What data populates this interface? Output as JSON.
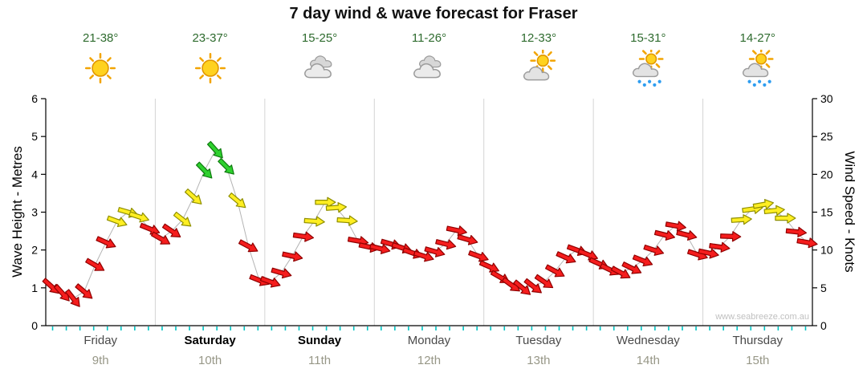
{
  "title": "7 day wind & wave forecast for Fraser",
  "watermark": "www.seabreeze.com.au",
  "header": {
    "days": [
      {
        "temp": "21-38°",
        "icon": "sunny"
      },
      {
        "temp": "23-37°",
        "icon": "sunny"
      },
      {
        "temp": "15-25°",
        "icon": "cloudy"
      },
      {
        "temp": "11-26°",
        "icon": "cloudy"
      },
      {
        "temp": "12-33°",
        "icon": "partly-cloudy"
      },
      {
        "temp": "15-31°",
        "icon": "sun-showers"
      },
      {
        "temp": "14-27°",
        "icon": "sun-showers"
      }
    ]
  },
  "chart_data": {
    "type": "line",
    "marker": "wind-arrow",
    "title": "7 day wind & wave forecast for Fraser",
    "left_axis": {
      "label": "Wave Height - Metres",
      "min": 0,
      "max": 6,
      "ticks": [
        0,
        1,
        2,
        3,
        4,
        5,
        6
      ]
    },
    "right_axis": {
      "label": "Wind Speed - Knots",
      "min": 0,
      "max": 30,
      "ticks": [
        0,
        5,
        10,
        15,
        20,
        25,
        30
      ]
    },
    "days": [
      {
        "name": "Friday",
        "date": "9th",
        "bold": false
      },
      {
        "name": "Saturday",
        "date": "10th",
        "bold": true
      },
      {
        "name": "Sunday",
        "date": "11th",
        "bold": true
      },
      {
        "name": "Monday",
        "date": "12th",
        "bold": false
      },
      {
        "name": "Tuesday",
        "date": "13th",
        "bold": false
      },
      {
        "name": "Wednesday",
        "date": "14th",
        "bold": false
      },
      {
        "name": "Thursday",
        "date": "15th",
        "bold": false
      }
    ],
    "points_per_day": 10,
    "series": [
      {
        "name": "Wind speed (knots) with arrow direction (deg, 0 = east, +cw)",
        "points": [
          [
            5.2,
            42
          ],
          [
            4.3,
            48
          ],
          [
            3.6,
            52
          ],
          [
            4.5,
            40
          ],
          [
            8,
            30
          ],
          [
            11,
            24
          ],
          [
            13.8,
            20
          ],
          [
            15,
            16
          ],
          [
            14.4,
            18
          ],
          [
            12.8,
            22
          ],
          [
            11.5,
            30
          ],
          [
            12.5,
            34
          ],
          [
            14,
            38
          ],
          [
            17,
            42
          ],
          [
            20.5,
            46
          ],
          [
            23.2,
            48
          ],
          [
            21,
            45
          ],
          [
            16.5,
            40
          ],
          [
            10.5,
            28
          ],
          [
            6,
            22
          ],
          [
            5.8,
            20
          ],
          [
            7,
            16
          ],
          [
            9.2,
            12
          ],
          [
            11.8,
            8
          ],
          [
            13.8,
            4
          ],
          [
            16.3,
            0
          ],
          [
            15.6,
            -4
          ],
          [
            13.9,
            4
          ],
          [
            11.2,
            10
          ],
          [
            10.4,
            12
          ],
          [
            10.2,
            14
          ],
          [
            10.8,
            16
          ],
          [
            10.3,
            18
          ],
          [
            9.6,
            20
          ],
          [
            9.2,
            18
          ],
          [
            9.8,
            16
          ],
          [
            10.8,
            14
          ],
          [
            12.6,
            12
          ],
          [
            11.4,
            16
          ],
          [
            9.2,
            20
          ],
          [
            7.8,
            24
          ],
          [
            6.4,
            30
          ],
          [
            5.4,
            36
          ],
          [
            5,
            40
          ],
          [
            5.2,
            38
          ],
          [
            5.8,
            34
          ],
          [
            7.2,
            28
          ],
          [
            9,
            24
          ],
          [
            10,
            20
          ],
          [
            9.4,
            22
          ],
          [
            8.2,
            24
          ],
          [
            7.4,
            26
          ],
          [
            7,
            28
          ],
          [
            7.6,
            26
          ],
          [
            8.6,
            22
          ],
          [
            10,
            18
          ],
          [
            12,
            14
          ],
          [
            13.2,
            10
          ],
          [
            12,
            14
          ],
          [
            9.4,
            18
          ],
          [
            9.6,
            12
          ],
          [
            10.4,
            8
          ],
          [
            11.8,
            2
          ],
          [
            14,
            -4
          ],
          [
            15.4,
            -8
          ],
          [
            16,
            -10
          ],
          [
            15.2,
            -6
          ],
          [
            14.2,
            0
          ],
          [
            12.4,
            6
          ],
          [
            11,
            10
          ]
        ]
      }
    ],
    "speed_colors": {
      "light": {
        "max_kn": 13.5,
        "fill": "#f51d1d",
        "stroke": "#8f0000"
      },
      "moderate": {
        "max_kn": 18.5,
        "fill": "#ffee22",
        "stroke": "#8f8f00"
      },
      "fresh": {
        "max_kn": 99,
        "fill": "#2ed12e",
        "stroke": "#0f7a0f"
      }
    },
    "line_color": "#b4b4b4",
    "grid": {
      "day_separator_color": "#d4d4d4",
      "bottom_tick_color": "#00c3c3",
      "axis_color": "#000000"
    },
    "ylim_left": [
      0,
      6
    ],
    "ylim_right": [
      0,
      30
    ]
  }
}
